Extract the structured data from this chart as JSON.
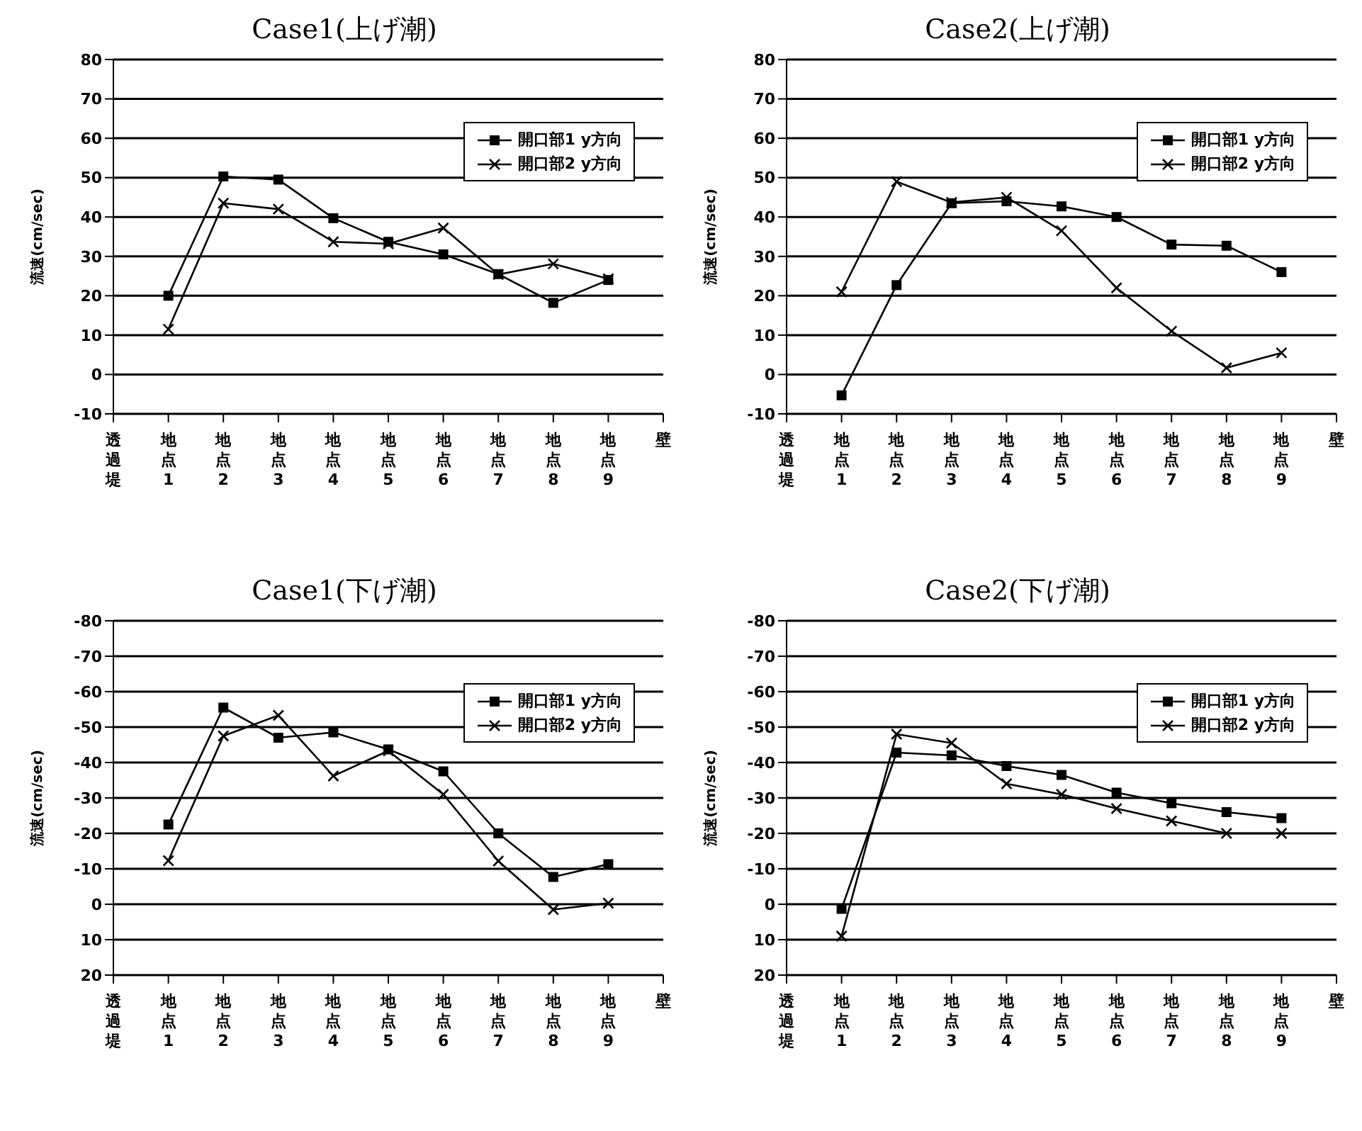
{
  "chart_data": [
    {
      "type": "line",
      "title": "Case1(上げ潮)",
      "ylabel": "流速(cm/sec)",
      "categories": [
        "透過堤",
        "地点1",
        "地点2",
        "地点3",
        "地点4",
        "地点5",
        "地点6",
        "地点7",
        "地点8",
        "地点9",
        "壁"
      ],
      "ylim": [
        -10,
        80
      ],
      "yticks": [
        -10,
        0,
        10,
        20,
        30,
        40,
        50,
        60,
        70,
        80
      ],
      "grid": "y",
      "legend": "top right",
      "series": [
        {
          "name": "開口部1 y方向",
          "color": "#000000",
          "marker": "square",
          "values": [
            null,
            20,
            50.3,
            49.5,
            39.7,
            33.7,
            30.5,
            25.5,
            18.2,
            24,
            null
          ]
        },
        {
          "name": "開口部2 y方向",
          "color": "#000000",
          "marker": "cross",
          "values": [
            null,
            11.5,
            43.5,
            42,
            33.7,
            33.2,
            37.2,
            25.4,
            28.1,
            24.3,
            null
          ]
        }
      ]
    },
    {
      "type": "line",
      "title": "Case2(上げ潮)",
      "ylabel": "流速(cm/sec)",
      "categories": [
        "透過堤",
        "地点1",
        "地点2",
        "地点3",
        "地点4",
        "地点5",
        "地点6",
        "地点7",
        "地点8",
        "地点9",
        "壁"
      ],
      "ylim": [
        -10,
        80
      ],
      "yticks": [
        -10,
        0,
        10,
        20,
        30,
        40,
        50,
        60,
        70,
        80
      ],
      "grid": "y",
      "legend": "top right",
      "series": [
        {
          "name": "開口部1 y方向",
          "color": "#000000",
          "marker": "square",
          "values": [
            null,
            -5.3,
            22.7,
            43.5,
            44,
            42.7,
            40,
            33,
            32.7,
            26,
            null
          ]
        },
        {
          "name": "開口部2 y方向",
          "color": "#000000",
          "marker": "cross",
          "values": [
            null,
            21,
            49,
            43.7,
            45,
            36.5,
            22,
            11,
            1.7,
            5.5,
            null
          ]
        }
      ]
    },
    {
      "type": "line",
      "title": "Case1(下げ潮)",
      "ylabel": "流速(cm/sec)",
      "categories": [
        "透過堤",
        "地点1",
        "地点2",
        "地点3",
        "地点4",
        "地点5",
        "地点6",
        "地点7",
        "地点8",
        "地点9",
        "壁"
      ],
      "ylim": [
        20,
        -80
      ],
      "yticks": [
        -80,
        -70,
        -60,
        -50,
        -40,
        -30,
        -20,
        -10,
        0,
        10,
        20
      ],
      "grid": "y",
      "legend": "top right",
      "series": [
        {
          "name": "開口部1 y方向",
          "color": "#000000",
          "marker": "square",
          "values": [
            null,
            -22.5,
            -55.5,
            -47,
            -48.5,
            -43.7,
            -37.5,
            -20,
            -7.7,
            -11.3,
            null
          ]
        },
        {
          "name": "開口部2 y方向",
          "color": "#000000",
          "marker": "cross",
          "values": [
            null,
            -12.3,
            -47.5,
            -53.3,
            -36.2,
            -43.3,
            -31,
            -12.2,
            1.5,
            -0.3,
            null
          ]
        }
      ]
    },
    {
      "type": "line",
      "title": "Case2(下げ潮)",
      "ylabel": "流速(cm/sec)",
      "categories": [
        "透過堤",
        "地点1",
        "地点2",
        "地点3",
        "地点4",
        "地点5",
        "地点6",
        "地点7",
        "地点8",
        "地点9",
        "壁"
      ],
      "ylim": [
        20,
        -80
      ],
      "yticks": [
        -80,
        -70,
        -60,
        -50,
        -40,
        -30,
        -20,
        -10,
        0,
        10,
        20
      ],
      "grid": "y",
      "legend": "top right",
      "series": [
        {
          "name": "開口部1 y方向",
          "color": "#000000",
          "marker": "square",
          "values": [
            null,
            1.3,
            -42.8,
            -42,
            -39,
            -36.5,
            -31.5,
            -28.5,
            -26,
            -24.3,
            null
          ]
        },
        {
          "name": "開口部2 y方向",
          "color": "#000000",
          "marker": "cross",
          "values": [
            null,
            9,
            -48,
            -45.5,
            -34,
            -31,
            -27,
            -23.5,
            -20,
            -20,
            null
          ]
        }
      ]
    }
  ]
}
